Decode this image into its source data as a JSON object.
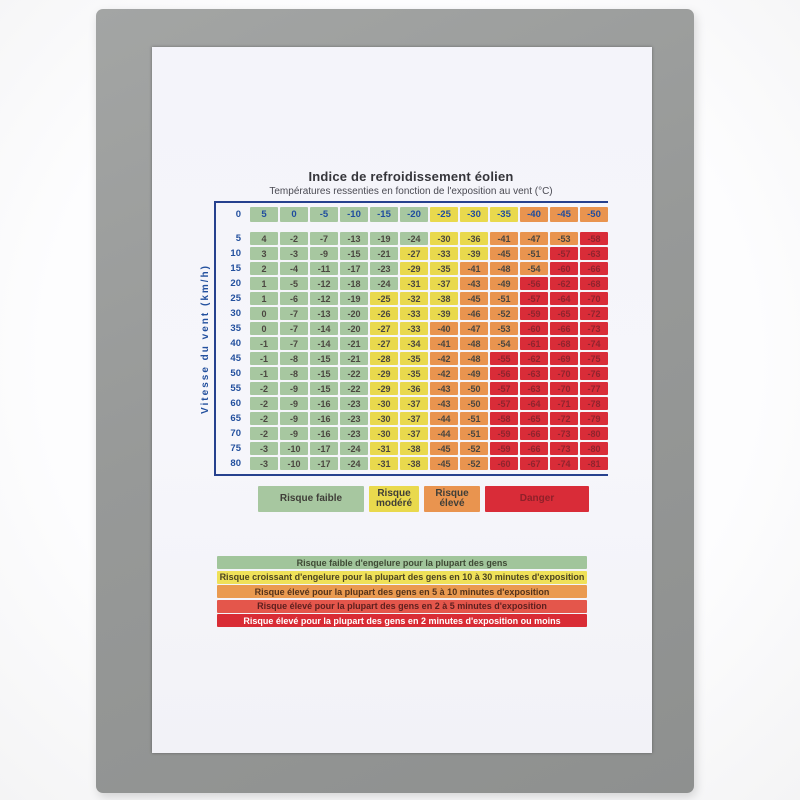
{
  "document": {
    "title": "Indice de refroidissement éolien",
    "subtitle": "Températures ressenties en fonction de l'exposition au vent (°C)",
    "axis_label": "Vitesse du vent (km/h)"
  },
  "chart_data": {
    "type": "heatmap",
    "title": "Indice de refroidissement éolien",
    "subtitle": "Températures ressenties en fonction de l'exposition au vent (°C)",
    "ylabel": "Vitesse du vent (km/h)",
    "columns_air_temperature_c": [
      5,
      0,
      -5,
      -10,
      -15,
      -20,
      -25,
      -30,
      -35,
      -40,
      -45,
      -50
    ],
    "rows_wind_speed_kmh": [
      0,
      5,
      10,
      15,
      20,
      25,
      30,
      35,
      40,
      45,
      50,
      55,
      60,
      65,
      70,
      75,
      80
    ],
    "values": [
      [
        5,
        0,
        -5,
        -10,
        -15,
        -20,
        -25,
        -30,
        -35,
        -40,
        -45,
        -50
      ],
      [
        4,
        -2,
        -7,
        -13,
        -19,
        -24,
        -30,
        -36,
        -41,
        -47,
        -53,
        -58
      ],
      [
        3,
        -3,
        -9,
        -15,
        -21,
        -27,
        -33,
        -39,
        -45,
        -51,
        -57,
        -63
      ],
      [
        2,
        -4,
        -11,
        -17,
        -23,
        -29,
        -35,
        -41,
        -48,
        -54,
        -60,
        -66
      ],
      [
        1,
        -5,
        -12,
        -18,
        -24,
        -31,
        -37,
        -43,
        -49,
        -56,
        -62,
        -68
      ],
      [
        1,
        -6,
        -12,
        -19,
        -25,
        -32,
        -38,
        -45,
        -51,
        -57,
        -64,
        -70
      ],
      [
        0,
        -7,
        -13,
        -20,
        -26,
        -33,
        -39,
        -46,
        -52,
        -59,
        -65,
        -72
      ],
      [
        0,
        -7,
        -14,
        -20,
        -27,
        -33,
        -40,
        -47,
        -53,
        -60,
        -66,
        -73
      ],
      [
        -1,
        -7,
        -14,
        -21,
        -27,
        -34,
        -41,
        -48,
        -54,
        -61,
        -68,
        -74
      ],
      [
        -1,
        -8,
        -15,
        -21,
        -28,
        -35,
        -42,
        -48,
        -55,
        -62,
        -69,
        -75
      ],
      [
        -1,
        -8,
        -15,
        -22,
        -29,
        -35,
        -42,
        -49,
        -56,
        -63,
        -70,
        -76
      ],
      [
        -2,
        -9,
        -15,
        -22,
        -29,
        -36,
        -43,
        -50,
        -57,
        -63,
        -70,
        -77
      ],
      [
        -2,
        -9,
        -16,
        -23,
        -30,
        -37,
        -43,
        -50,
        -57,
        -64,
        -71,
        -78
      ],
      [
        -2,
        -9,
        -16,
        -23,
        -30,
        -37,
        -44,
        -51,
        -58,
        -65,
        -72,
        -79
      ],
      [
        -2,
        -9,
        -16,
        -23,
        -30,
        -37,
        -44,
        -51,
        -59,
        -66,
        -73,
        -80
      ],
      [
        -3,
        -10,
        -17,
        -24,
        -31,
        -38,
        -45,
        -52,
        -59,
        -66,
        -73,
        -80
      ],
      [
        -3,
        -10,
        -17,
        -24,
        -31,
        -38,
        -45,
        -52,
        -60,
        -67,
        -74,
        -81
      ]
    ],
    "risk_thresholds": {
      "low_min": -24,
      "moderate_min": -39,
      "high_min": -54
    },
    "risk_colors": {
      "low": "#a7c7a0",
      "moderate": "#e9d94d",
      "high": "#e9944f",
      "danger": "#d92c38"
    }
  },
  "legend": {
    "items": [
      {
        "label": "Risque faible",
        "level": "low"
      },
      {
        "label": "Risque modéré",
        "level": "moderate"
      },
      {
        "label": "Risque élevé",
        "level": "high"
      },
      {
        "label": "Danger",
        "level": "danger"
      }
    ]
  },
  "notes": [
    {
      "text": "Risque faible d'engelure pour la plupart des gens",
      "bg": "#a1c59b",
      "fg": "#3f4a35"
    },
    {
      "text": "Risque croissant d'engelure pour la plupart des gens en 10 à 30 minutes d'exposition",
      "bg": "#efe159",
      "fg": "#4c4420"
    },
    {
      "text": "Risque élevé pour la plupart des gens en 5 à 10 minutes d'exposition",
      "bg": "#ea9a50",
      "fg": "#55331c"
    },
    {
      "text": "Risque élevé pour la plupart des gens en 2 à 5 minutes d'exposition",
      "bg": "#e4564b",
      "fg": "#5c1f1e"
    },
    {
      "text": "Risque élevé pour la plupart des gens en 2 minutes d'exposition ou moins",
      "bg": "#d92c35",
      "fg": "#ffffff"
    }
  ]
}
